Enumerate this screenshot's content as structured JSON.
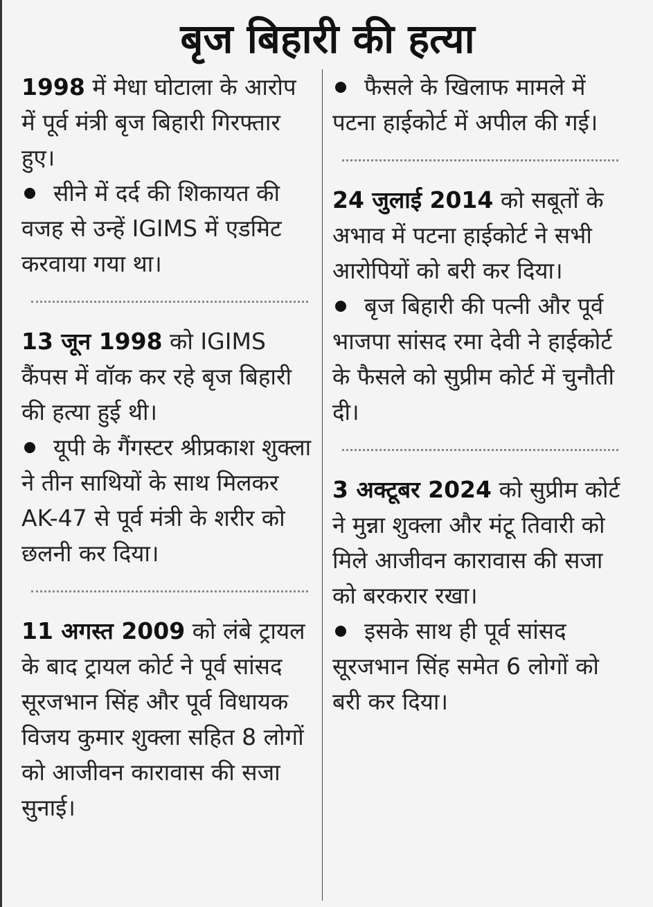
{
  "title": "बृज बिहारी की हत्या",
  "columns": [
    {
      "sections": [
        {
          "lead": "1998",
          "text": " में मेधा घोटाला के आरोप में पूर्व मंत्री बृज बिहारी गिरफ्तार हुए।",
          "bullets": [
            "सीने में दर्द की शिकायत की वजह से उन्हें IGIMS में एडमिट करवाया गया था।"
          ]
        },
        {
          "lead": "13 जून 1998",
          "text": " को IGIMS कैंपस में वॉक कर रहे बृज बिहारी की हत्या हुई थी।",
          "bullets": [
            "यूपी के गैंगस्टर श्रीप्रकाश शुक्ला ने तीन साथियों के साथ मिलकर AK-47 से पूर्व मंत्री के शरीर को छलनी कर दिया।"
          ]
        },
        {
          "lead": "11 अगस्त 2009",
          "text": " को लंबे ट्रायल के बाद ट्रायल कोर्ट ने पूर्व सांसद सूरजभान सिंह और पूर्व विधायक विजय कुमार शुक्ला सहित 8 लोगों को आजीवन कारावास की सजा सुनाई।",
          "bullets": []
        }
      ]
    },
    {
      "sections": [
        {
          "bullets": [
            "फैसले के खिलाफ मामले में पटना हाईकोर्ट में अपील की गई।"
          ]
        },
        {
          "lead": "24 जुलाई 2014",
          "text": " को सबूतों के अभाव में पटना हाईकोर्ट ने सभी आरोपियों को बरी कर दिया।",
          "bullets": [
            "बृज बिहारी की पत्नी और पूर्व भाजपा सांसद रमा देवी ने हाईकोर्ट के फैसले को सुप्रीम कोर्ट में चुनौती दी।"
          ]
        },
        {
          "lead": "3 अक्टूबर 2024",
          "text": " को सुप्रीम कोर्ट ने मुन्ना शुक्ला और मंटू तिवारी को मिले आजीवन कारावास की सजा को बरकरार रखा।",
          "bullets": [
            "इसके साथ ही पूर्व सांसद सूरजभान सिंह समेत 6 लोगों को बरी कर दिया।"
          ]
        }
      ]
    }
  ]
}
